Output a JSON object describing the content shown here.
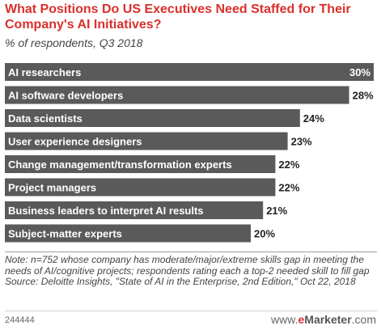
{
  "chart_data": {
    "type": "bar",
    "orientation": "horizontal",
    "title": "What Positions Do US Executives Need Staffed for Their Company's AI Initiatives?",
    "subtitle": "% of respondents, Q3 2018",
    "categories": [
      "AI researchers",
      "AI software developers",
      "Data scientists",
      "User experience designers",
      "Change management/transformation experts",
      "Project managers",
      "Business leaders to interpret AI results",
      "Subject-matter experts"
    ],
    "values": [
      30,
      28,
      24,
      23,
      22,
      22,
      21,
      20
    ],
    "value_labels": [
      "30%",
      "28%",
      "24%",
      "23%",
      "22%",
      "22%",
      "21%",
      "20%"
    ],
    "xlim": [
      0,
      30
    ],
    "grid": false,
    "legend": "none",
    "bar_color": "#5a5a5a"
  },
  "footnote": {
    "note": "Note: n=752 whose company has moderate/major/extreme skills gap in meeting the needs of AI/cognitive projects; respondents rating each a top-2 needed skill to fill gap",
    "source": "Source: Deloitte Insights, \"State of AI in the Enterprise, 2nd Edition,\" Oct 22, 2018"
  },
  "footer": {
    "chart_id": "244444",
    "brand_www": "www.",
    "brand_e": "e",
    "brand_name": "Marketer",
    "brand_domain": ".com"
  },
  "colors": {
    "title": "#d9302b",
    "bar": "#5a5a5a",
    "brand_accent": "#d9302b"
  }
}
